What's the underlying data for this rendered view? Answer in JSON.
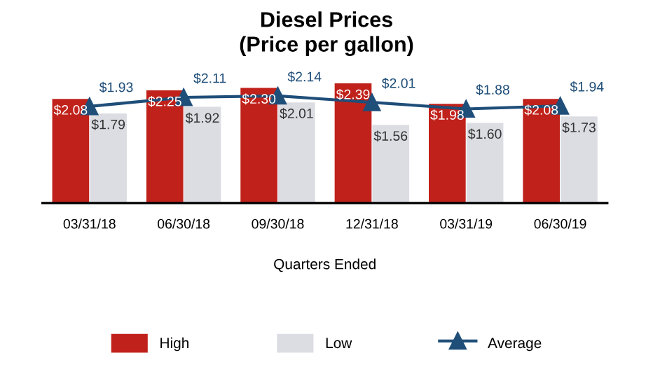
{
  "chart_data": {
    "type": "bar",
    "title": "Diesel Prices\n(Price per gallon)",
    "xlabel": "Quarters Ended",
    "categories": [
      "03/31/18",
      "06/30/18",
      "09/30/18",
      "12/31/18",
      "03/31/19",
      "06/30/19"
    ],
    "series": [
      {
        "name": "High",
        "color": "#c0221b",
        "values": [
          2.08,
          2.25,
          2.3,
          2.39,
          1.98,
          2.08
        ],
        "value_labels": [
          "$2.08",
          "$2.25",
          "$2.30",
          "$2.39",
          "$1.98",
          "$2.08"
        ]
      },
      {
        "name": "Low",
        "color": "#dcdde3",
        "values": [
          1.79,
          1.92,
          2.01,
          1.56,
          1.6,
          1.73
        ],
        "value_labels": [
          "$1.79",
          "$1.92",
          "$2.01",
          "$1.56",
          "$1.60",
          "$1.73"
        ]
      },
      {
        "name": "Average",
        "type": "line",
        "color": "#1f4e79",
        "values": [
          1.93,
          2.11,
          2.14,
          2.01,
          1.88,
          1.94
        ],
        "value_labels": [
          "$1.93",
          "$2.11",
          "$2.14",
          "$2.01",
          "$1.88",
          "$1.94"
        ]
      }
    ],
    "legend": "bottom",
    "marker": "triangle",
    "tick_labels": "x"
  }
}
